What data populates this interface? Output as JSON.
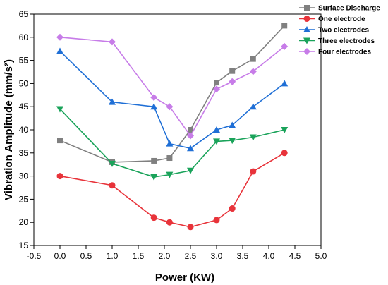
{
  "chart_data": {
    "type": "line",
    "xlabel": "Power (KW)",
    "ylabel": "Vibration Amplitude (mm/s²)",
    "xlim": [
      -0.5,
      5.0
    ],
    "ylim": [
      15,
      65
    ],
    "xticks": [
      "-0.5",
      "0.0",
      "0.5",
      "1.0",
      "1.5",
      "2.0",
      "2.5",
      "3.0",
      "3.5",
      "4.0",
      "4.5",
      "5.0"
    ],
    "yticks": [
      "15",
      "20",
      "25",
      "30",
      "35",
      "40",
      "45",
      "50",
      "55",
      "60",
      "65"
    ],
    "legend_position": "top-right",
    "grid": false,
    "x": [
      0.0,
      1.0,
      1.8,
      2.1,
      2.5,
      3.0,
      3.3,
      3.7,
      4.3
    ],
    "series": [
      {
        "name": "Surface Discharge",
        "color": "#808080",
        "marker": "square",
        "values": [
          37.7,
          33.0,
          33.3,
          33.9,
          40.0,
          50.2,
          52.7,
          55.3,
          62.5
        ]
      },
      {
        "name": "One electrode",
        "color": "#e8333a",
        "marker": "circle",
        "values": [
          30.0,
          28.0,
          21.0,
          20.0,
          19.0,
          20.5,
          23.0,
          31.0,
          35.0
        ]
      },
      {
        "name": "Two electrodes",
        "color": "#1f6fd6",
        "marker": "triangle-up",
        "values": [
          57.0,
          46.0,
          45.0,
          37.0,
          36.0,
          40.0,
          41.0,
          45.0,
          50.0
        ]
      },
      {
        "name": "Three electrodes",
        "color": "#1aa35a",
        "marker": "triangle-down",
        "values": [
          44.5,
          32.7,
          29.8,
          30.3,
          31.2,
          37.5,
          37.7,
          38.4,
          40.0
        ]
      },
      {
        "name": "Four electrodes",
        "color": "#c77ce8",
        "marker": "diamond",
        "values": [
          60.0,
          59.0,
          47.0,
          45.0,
          38.7,
          48.8,
          50.4,
          52.6,
          58.0
        ]
      }
    ]
  }
}
